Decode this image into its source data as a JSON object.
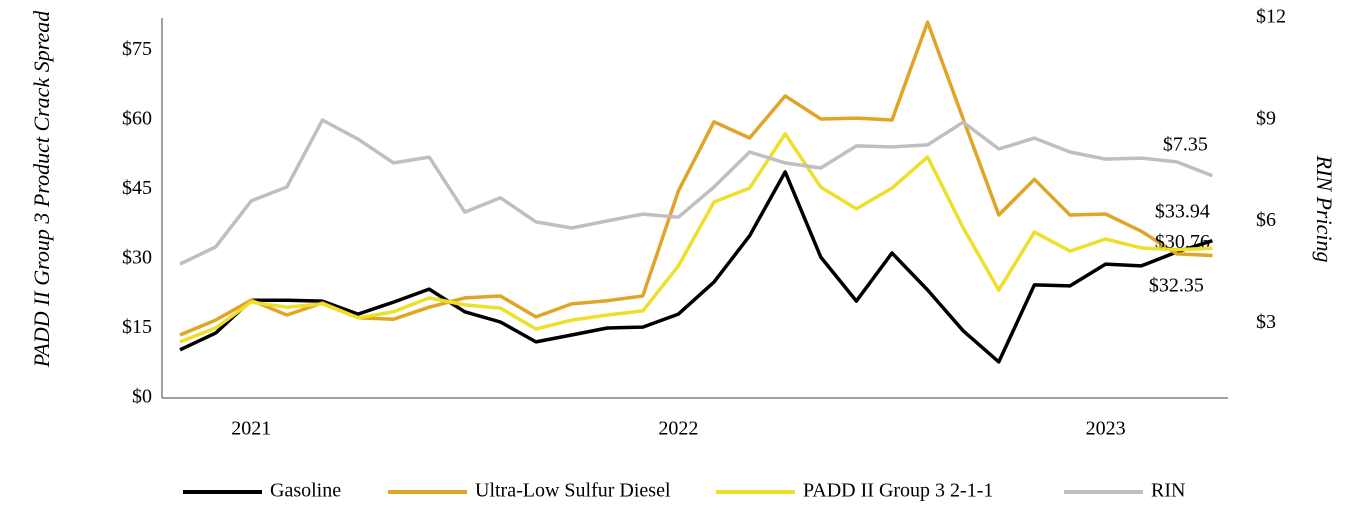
{
  "chart_data": {
    "type": "line",
    "y_label": "PADD II Group 3 Product Crack Spread",
    "y2_label": "RIN Pricing",
    "categories": [
      null,
      null,
      "2021",
      null,
      null,
      null,
      null,
      null,
      null,
      null,
      null,
      null,
      null,
      null,
      "2022",
      null,
      null,
      null,
      null,
      null,
      null,
      null,
      null,
      null,
      null,
      null,
      "2023",
      null,
      null,
      null
    ],
    "ylim": [
      0,
      82
    ],
    "yticks": [
      {
        "value": 0,
        "label": "$0"
      },
      {
        "value": 15,
        "label": "$15"
      },
      {
        "value": 30,
        "label": "$30"
      },
      {
        "value": 45,
        "label": "$45"
      },
      {
        "value": 60,
        "label": "$60"
      },
      {
        "value": 75,
        "label": "$75"
      }
    ],
    "y2lim": [
      0.8,
      12
    ],
    "y2ticks": [
      {
        "value": 3,
        "label": "$3"
      },
      {
        "value": 6,
        "label": "$6"
      },
      {
        "value": 9,
        "label": "$9"
      },
      {
        "value": 12,
        "label": "$12"
      }
    ],
    "legend": "bottom",
    "series": [
      {
        "name": "Gasoline",
        "color": "#000000",
        "values": [
          10.4,
          14.0,
          21.1,
          21.1,
          20.9,
          18.1,
          20.7,
          23.5,
          18.6,
          16.4,
          12.1,
          13.6,
          15.1,
          15.3,
          18.1,
          25.0,
          35.0,
          48.8,
          30.4,
          20.9,
          31.3,
          23.3,
          14.5,
          7.8,
          24.4,
          24.2,
          28.9,
          28.5,
          31.5,
          33.94
        ],
        "value_labels": [
          null,
          null,
          null,
          null,
          null,
          null,
          null,
          null,
          null,
          null,
          null,
          null,
          null,
          null,
          null,
          null,
          null,
          null,
          null,
          null,
          null,
          null,
          null,
          null,
          null,
          null,
          null,
          null,
          null,
          "$33.94"
        ]
      },
      {
        "name": "Ultra-Low Sulfur Diesel",
        "color": "#e0a526",
        "values": [
          13.6,
          16.8,
          21.1,
          17.9,
          20.5,
          17.3,
          17.0,
          19.6,
          21.6,
          22.0,
          17.5,
          20.3,
          21.0,
          22.0,
          44.7,
          59.6,
          56.1,
          65.2,
          60.2,
          60.4,
          60.0,
          81.1,
          60.2,
          39.5,
          47.2,
          39.5,
          39.7,
          36.0,
          31.1,
          30.76
        ],
        "value_labels": [
          null,
          null,
          null,
          null,
          null,
          null,
          null,
          null,
          null,
          null,
          null,
          null,
          null,
          null,
          null,
          null,
          null,
          null,
          null,
          null,
          null,
          null,
          null,
          null,
          null,
          null,
          null,
          null,
          null,
          "$30.76"
        ]
      },
      {
        "name": "PADD II Group 3 2-1-1",
        "color": "#eedf2a",
        "values": [
          12.1,
          15.1,
          20.7,
          19.6,
          20.3,
          17.3,
          18.6,
          21.6,
          20.1,
          19.4,
          14.9,
          16.8,
          17.9,
          18.8,
          28.5,
          42.3,
          45.3,
          57.0,
          45.5,
          40.8,
          45.3,
          52.0,
          36.7,
          23.3,
          35.8,
          31.7,
          34.3,
          32.4,
          32.0,
          32.35
        ],
        "value_labels": [
          null,
          null,
          null,
          null,
          null,
          null,
          null,
          null,
          null,
          null,
          null,
          null,
          null,
          null,
          null,
          null,
          null,
          null,
          null,
          null,
          null,
          null,
          null,
          null,
          null,
          null,
          null,
          null,
          null,
          "$32.35"
        ]
      },
      {
        "name": "RIN",
        "color": "#bfbfbf",
        "axis": "y2",
        "values": [
          4.75,
          5.25,
          6.61,
          7.02,
          8.99,
          8.43,
          7.73,
          7.9,
          6.28,
          6.7,
          5.99,
          5.81,
          6.02,
          6.22,
          6.13,
          7.02,
          8.05,
          7.73,
          7.58,
          8.23,
          8.2,
          8.26,
          8.93,
          8.14,
          8.46,
          8.05,
          7.84,
          7.87,
          7.76,
          7.35
        ],
        "value_labels": [
          null,
          null,
          null,
          null,
          null,
          null,
          null,
          null,
          null,
          null,
          null,
          null,
          null,
          null,
          null,
          null,
          null,
          null,
          null,
          null,
          null,
          null,
          null,
          null,
          null,
          null,
          null,
          null,
          null,
          "$7.35"
        ]
      }
    ]
  }
}
